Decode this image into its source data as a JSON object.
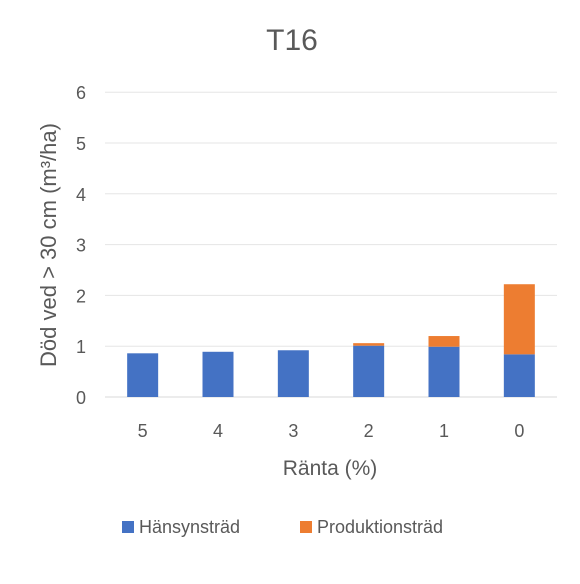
{
  "chart_data": {
    "type": "bar",
    "stacked": true,
    "title": "T16",
    "xlabel": "Ränta (%)",
    "ylabel": "Död ved > 30 cm (m³/ha)",
    "categories": [
      "5",
      "4",
      "3",
      "2",
      "1",
      "0"
    ],
    "series": [
      {
        "name": "Hänsynsträd",
        "color": "#4472C4",
        "values": [
          0.86,
          0.89,
          0.92,
          1.01,
          0.99,
          0.84
        ]
      },
      {
        "name": "Produktionsträd",
        "color": "#ED7D31",
        "values": [
          0.0,
          0.0,
          0.0,
          0.05,
          0.21,
          1.38
        ]
      }
    ],
    "ylim": [
      0,
      6
    ],
    "yticks": [
      "0",
      "1",
      "2",
      "3",
      "4",
      "5",
      "6"
    ],
    "grid": true,
    "legend_position": "bottom"
  }
}
